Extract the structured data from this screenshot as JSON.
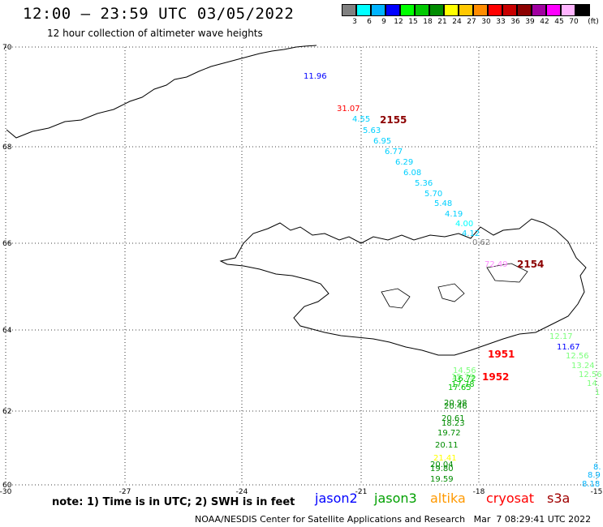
{
  "header": {
    "title": "12:00 – 23:59 UTC 03/05/2022",
    "subtitle": "12 hour collection of altimeter wave heights"
  },
  "colorbar": {
    "unit": "(ft)",
    "swatches": [
      {
        "label": "3",
        "color": "#808080"
      },
      {
        "label": "6",
        "color": "#00ffff"
      },
      {
        "label": "9",
        "color": "#00b4ff"
      },
      {
        "label": "12",
        "color": "#0000ff"
      },
      {
        "label": "15",
        "color": "#00ff00"
      },
      {
        "label": "18",
        "color": "#00c800"
      },
      {
        "label": "21",
        "color": "#008c00"
      },
      {
        "label": "24",
        "color": "#ffff00"
      },
      {
        "label": "27",
        "color": "#ffc800"
      },
      {
        "label": "30",
        "color": "#ff8c00"
      },
      {
        "label": "33",
        "color": "#ff0000"
      },
      {
        "label": "36",
        "color": "#c80000"
      },
      {
        "label": "39",
        "color": "#8c0000"
      },
      {
        "label": "42",
        "color": "#a000a0"
      },
      {
        "label": "45",
        "color": "#ff00ff"
      },
      {
        "label": "70",
        "color": "#ffb4ff"
      },
      {
        "label": "",
        "color": "#000000"
      }
    ]
  },
  "axes": {
    "lat_labels": [
      "70",
      "68",
      "66",
      "64",
      "62",
      "60"
    ],
    "lon_labels": [
      "-30",
      "-27",
      "-24",
      "-21",
      "-18",
      "-15"
    ]
  },
  "tracks": [
    {
      "time": "2155",
      "color": "#8c0000"
    },
    {
      "time": "2154",
      "color": "#8c0000"
    },
    {
      "time": "1951",
      "color": "#ff0000"
    },
    {
      "time": "1952",
      "color": "#ff0000"
    }
  ],
  "wave_labels": [
    {
      "value": "11.96",
      "color": "#0000ff"
    },
    {
      "value": "31.07",
      "color": "#ff0000"
    },
    {
      "value": "4.55",
      "color": "#00d0ff"
    },
    {
      "value": "5.63",
      "color": "#00d0ff"
    },
    {
      "value": "6.95",
      "color": "#00d0ff"
    },
    {
      "value": "6.77",
      "color": "#00d0ff"
    },
    {
      "value": "6.29",
      "color": "#00d0ff"
    },
    {
      "value": "6.08",
      "color": "#00d0ff"
    },
    {
      "value": "5.36",
      "color": "#00d0ff"
    },
    {
      "value": "5.70",
      "color": "#00d0ff"
    },
    {
      "value": "5.48",
      "color": "#00d0ff"
    },
    {
      "value": "4.19",
      "color": "#00d0ff"
    },
    {
      "value": "4.00",
      "color": "#00ffff"
    },
    {
      "value": "4.12",
      "color": "#00d0ff"
    },
    {
      "value": "0.62",
      "color": "#808080"
    },
    {
      "value": "72.49",
      "color": "#ff8cff"
    },
    {
      "value": "12.17",
      "color": "#7cff7c"
    },
    {
      "value": "11.67",
      "color": "#0000ff"
    },
    {
      "value": "12.56",
      "color": "#7cff7c"
    },
    {
      "value": "13.24",
      "color": "#7cff7c"
    },
    {
      "value": "12.56",
      "color": "#7cff7c"
    },
    {
      "value": "14.",
      "color": "#7cff7c"
    },
    {
      "value": "1",
      "color": "#7cff7c"
    },
    {
      "value": "14.56",
      "color": "#7cff7c"
    },
    {
      "value": "15.79",
      "color": "#7cff7c"
    },
    {
      "value": "16.72",
      "color": "#00c800"
    },
    {
      "value": "17.78",
      "color": "#00c800"
    },
    {
      "value": "17.65",
      "color": "#00c800"
    },
    {
      "value": "20.98",
      "color": "#008c00"
    },
    {
      "value": "20.46",
      "color": "#008c00"
    },
    {
      "value": "20.61",
      "color": "#008c00"
    },
    {
      "value": "18.23",
      "color": "#008c00"
    },
    {
      "value": "19.72",
      "color": "#008c00"
    },
    {
      "value": "20.11",
      "color": "#008c00"
    },
    {
      "value": "21.41",
      "color": "#ffff00"
    },
    {
      "value": "20.04",
      "color": "#008c00"
    },
    {
      "value": "19.80",
      "color": "#008c00"
    },
    {
      "value": "19.59",
      "color": "#008c00"
    },
    {
      "value": "8.",
      "color": "#00b4ff"
    },
    {
      "value": "8.9",
      "color": "#00b4ff"
    },
    {
      "value": "8.18",
      "color": "#00b4ff"
    }
  ],
  "note": "note: 1) Time is in UTC; 2) SWH is in feet",
  "legend": [
    {
      "name": "jason2",
      "color": "#0000ff"
    },
    {
      "name": "jason3",
      "color": "#00a000"
    },
    {
      "name": "altika",
      "color": "#ff9900"
    },
    {
      "name": "cryosat",
      "color": "#ff0000"
    },
    {
      "name": "s3a",
      "color": "#a00000"
    }
  ],
  "footer": "NOAA/NESDIS Center for Satellite Applications and Research   Mar  7 08:29:41 UTC 2022"
}
